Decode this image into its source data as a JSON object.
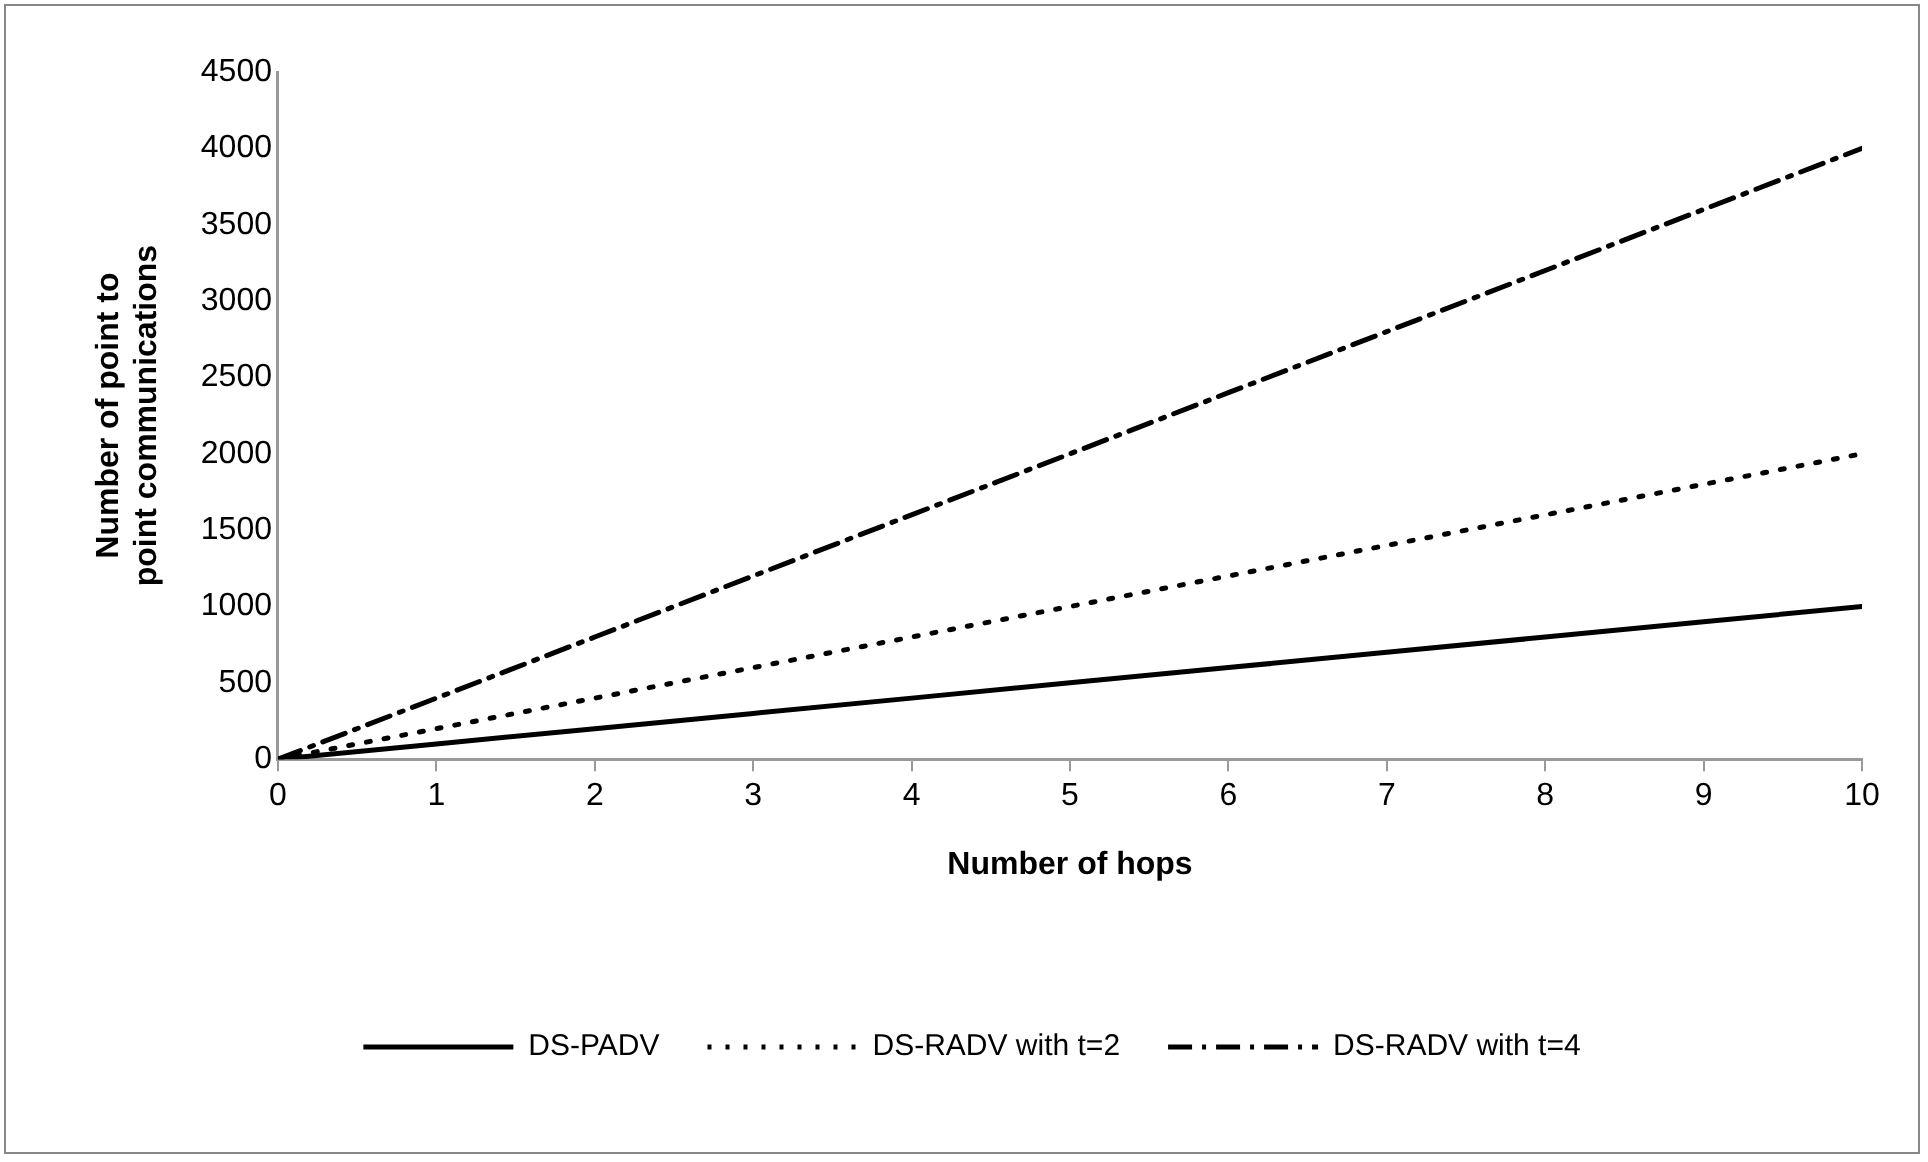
{
  "chart_data": {
    "type": "line",
    "xlabel": "Number of hops",
    "ylabel": "Number of point to point communications",
    "x": [
      0,
      1,
      2,
      3,
      4,
      5,
      6,
      7,
      8,
      9,
      10
    ],
    "xlim": [
      0,
      10
    ],
    "xticks": [
      0,
      1,
      2,
      3,
      4,
      5,
      6,
      7,
      8,
      9,
      10
    ],
    "ylim": [
      0,
      4500
    ],
    "yticks": [
      0,
      500,
      1000,
      1500,
      2000,
      2500,
      3000,
      3500,
      4000,
      4500
    ],
    "grid": false,
    "legend": "bottom",
    "marker": "none",
    "series": [
      {
        "name": "DS-PADV",
        "color": "#000000",
        "line_style": "solid",
        "values": [
          0,
          100,
          200,
          300,
          400,
          500,
          600,
          700,
          800,
          900,
          1000
        ]
      },
      {
        "name": "DS-RADV with t=2",
        "color": "#000000",
        "line_style": "dotted",
        "values": [
          0,
          200,
          400,
          600,
          800,
          1000,
          1200,
          1400,
          1600,
          1800,
          2000
        ]
      },
      {
        "name": "DS-RADV with t=4",
        "color": "#000000",
        "line_style": "dashdot",
        "values": [
          0,
          400,
          800,
          1200,
          1600,
          2000,
          2400,
          2800,
          3200,
          3600,
          4000
        ]
      }
    ]
  }
}
